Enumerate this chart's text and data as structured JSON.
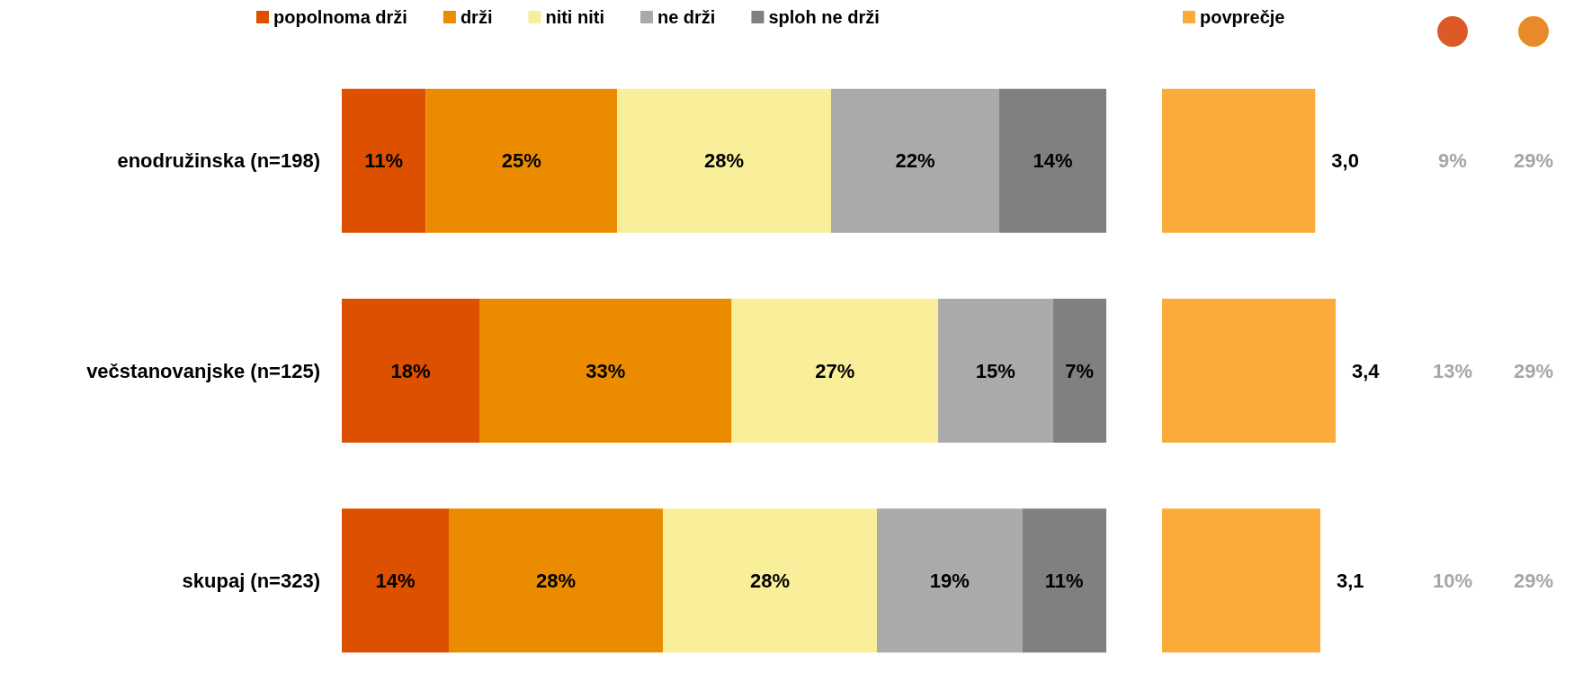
{
  "chart_data": [
    {
      "type": "bar",
      "orientation": "horizontal",
      "stacked": true,
      "legend": "top",
      "categories": [
        "enodružinska (n=198)",
        "večstanovanjske (n=125)",
        "skupaj (n=323)"
      ],
      "series": [
        {
          "name": "popolnoma drži",
          "color": "#dc5000",
          "values": [
            11,
            18,
            14
          ],
          "value_labels": [
            "11%",
            "18%",
            "14%"
          ]
        },
        {
          "name": "drži",
          "color": "#eb8c00",
          "values": [
            25,
            33,
            28
          ],
          "value_labels": [
            "25%",
            "33%",
            "28%"
          ]
        },
        {
          "name": "niti niti",
          "color": "#f9ef9a",
          "values": [
            28,
            27,
            28
          ],
          "value_labels": [
            "28%",
            "27%",
            "28%"
          ]
        },
        {
          "name": "ne drži",
          "color": "#aaaaaa",
          "values": [
            22,
            15,
            19
          ],
          "value_labels": [
            "22%",
            "15%",
            "19%"
          ]
        },
        {
          "name": "sploh ne drži",
          "color": "#808080",
          "values": [
            14,
            7,
            11
          ],
          "value_labels": [
            "14%",
            "7%",
            "11%"
          ]
        }
      ]
    },
    {
      "type": "bar",
      "orientation": "horizontal",
      "legend": "top",
      "categories": [
        null,
        null,
        null
      ],
      "series": [
        {
          "name": "povprečje",
          "color": "#fbab3a",
          "values": [
            3.0,
            3.4,
            3.1
          ],
          "value_labels": [
            "3,0",
            "3,4",
            "3,1"
          ]
        }
      ]
    },
    {
      "type": "heatmap",
      "categories": [
        null,
        null
      ],
      "y_categories": [
        null,
        null,
        null
      ],
      "cells": [
        [
          9,
          29
        ],
        [
          13,
          29
        ],
        [
          10,
          29
        ]
      ],
      "cell_labels": [
        [
          "9%",
          "29%"
        ],
        [
          "13%",
          "29%"
        ],
        [
          "10%",
          "29%"
        ]
      ]
    }
  ]
}
